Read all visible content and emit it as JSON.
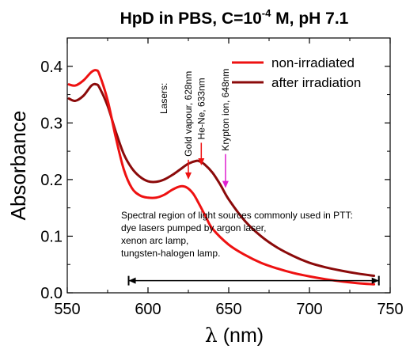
{
  "chart_data": {
    "type": "line",
    "title_main": "HpD in PBS, C=10",
    "title_exponent": "-4",
    "title_rest": " M, pH 7.1",
    "xlabel_symbol": "λ",
    "xlabel_unit": " (nm)",
    "ylabel": "Absorbance",
    "xlim": [
      550,
      750
    ],
    "ylim": [
      0.0,
      0.45
    ],
    "xticks": [
      550,
      600,
      650,
      700,
      750
    ],
    "yticks": [
      0.0,
      0.1,
      0.2,
      0.3,
      0.4
    ],
    "grid": false,
    "legend_position": "top-right",
    "series": [
      {
        "name": "non-irradiated",
        "color": "#ee1111",
        "x": [
          551,
          555,
          560,
          565,
          568,
          570,
          575,
          580,
          585,
          590,
          595,
          600,
          605,
          610,
          615,
          620,
          624,
          628,
          632,
          636,
          640,
          650,
          660,
          670,
          680,
          690,
          700,
          710,
          720,
          730,
          740
        ],
        "y": [
          0.368,
          0.366,
          0.375,
          0.39,
          0.393,
          0.385,
          0.34,
          0.275,
          0.218,
          0.185,
          0.172,
          0.168,
          0.168,
          0.173,
          0.182,
          0.188,
          0.186,
          0.175,
          0.155,
          0.133,
          0.113,
          0.085,
          0.067,
          0.053,
          0.043,
          0.035,
          0.029,
          0.024,
          0.02,
          0.017,
          0.015
        ]
      },
      {
        "name": "after irradiation",
        "color": "#8b0a0a",
        "x": [
          551,
          555,
          560,
          565,
          568,
          570,
          575,
          580,
          585,
          590,
          595,
          600,
          605,
          610,
          615,
          620,
          625,
          630,
          632,
          635,
          640,
          645,
          650,
          660,
          670,
          680,
          690,
          700,
          710,
          720,
          730,
          740
        ],
        "y": [
          0.343,
          0.339,
          0.348,
          0.366,
          0.368,
          0.362,
          0.33,
          0.285,
          0.245,
          0.22,
          0.205,
          0.197,
          0.196,
          0.2,
          0.208,
          0.218,
          0.228,
          0.233,
          0.232,
          0.227,
          0.212,
          0.19,
          0.165,
          0.127,
          0.1,
          0.08,
          0.065,
          0.053,
          0.045,
          0.039,
          0.034,
          0.03
        ]
      }
    ],
    "lasers_header": "Lasers:",
    "lasers": [
      {
        "label": "Gold vapour, 628nm",
        "x": 625,
        "color": "#ee1111",
        "y_top": 0.235,
        "y_tip": 0.2
      },
      {
        "label": "He-Ne, 633nm",
        "x": 633,
        "color": "#ee1111",
        "y_top": 0.265,
        "y_tip": 0.225
      },
      {
        "label": "Krypton ion, 648nm",
        "x": 648,
        "color": "#e020d0",
        "y_top": 0.245,
        "y_tip": 0.185
      }
    ],
    "annotation_lines": [
      "Spectral region of light sources commonly used in PTT:",
      "dye lasers pumped by argon laser,",
      "xenon arc lamp,",
      "tungsten-halogen lamp."
    ],
    "range_arrow": {
      "x_start": 588,
      "x_end": 743,
      "y": 0.0215
    }
  }
}
